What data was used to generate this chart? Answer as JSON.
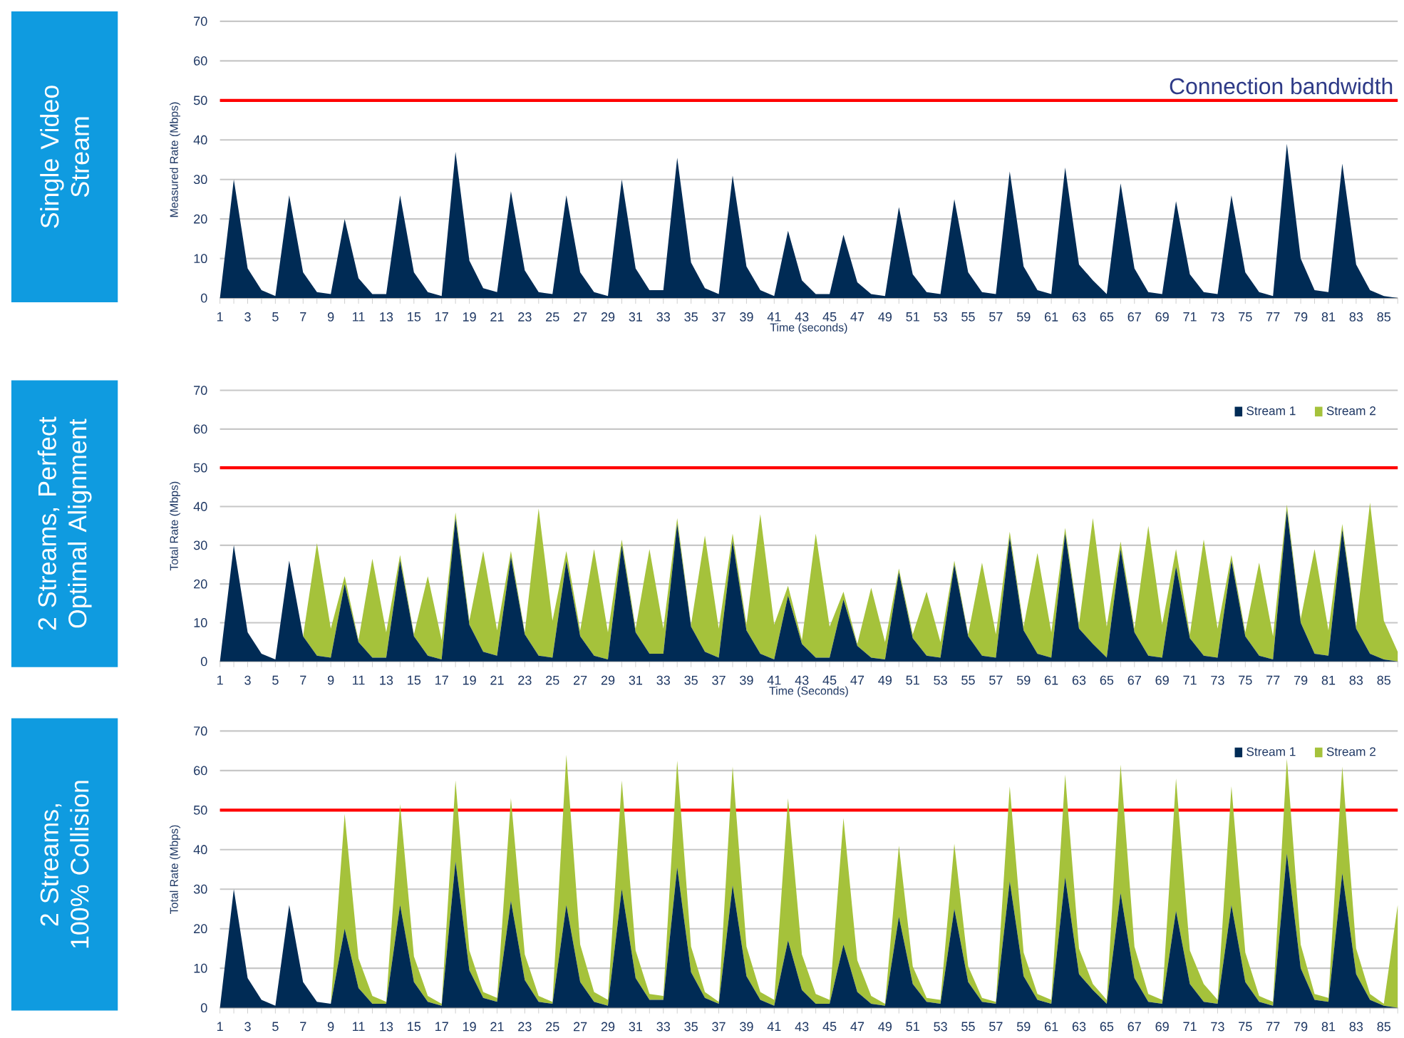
{
  "chart_data": [
    {
      "type": "area",
      "title": "Single Video Stream",
      "xlabel": "Time (seconds)",
      "ylabel": "Measured Rate (Mbps)",
      "categories": [
        "1",
        null,
        "3",
        null,
        "5",
        null,
        "7",
        null,
        "9",
        null,
        "11",
        null,
        "13",
        null,
        "15",
        null,
        "17",
        null,
        "19",
        null,
        "21",
        null,
        "23",
        null,
        "25",
        null,
        "27",
        null,
        "29",
        null,
        "31",
        null,
        "33",
        null,
        "35",
        null,
        "37",
        null,
        "39",
        null,
        "41",
        null,
        "43",
        null,
        "45",
        null,
        "47",
        null,
        "49",
        null,
        "51",
        null,
        "53",
        null,
        "55",
        null,
        "57",
        null,
        "59",
        null,
        "61",
        null,
        "63",
        null,
        "65",
        null,
        "67",
        null,
        "69",
        null,
        "71",
        null,
        "73",
        null,
        "75",
        null,
        "77",
        null,
        "79",
        null,
        "81",
        null,
        "83",
        null,
        "85",
        null
      ],
      "series": [
        {
          "color": "#002b55",
          "values": [
            0,
            30,
            7.5,
            2,
            0.5,
            26,
            6.5,
            1.5,
            1,
            20,
            5,
            1,
            1,
            26,
            6.5,
            1.5,
            0.5,
            37,
            9.5,
            2.5,
            1.5,
            27,
            7,
            1.5,
            1,
            26,
            6.5,
            1.5,
            0.5,
            30,
            7.5,
            2,
            2,
            35.5,
            9,
            2.5,
            1,
            31,
            8,
            2,
            0.5,
            17,
            4.5,
            1,
            1,
            16,
            4,
            1,
            0.5,
            23,
            6,
            1.5,
            1,
            25,
            6.5,
            1.5,
            1,
            32,
            8,
            2,
            1,
            33,
            8.5,
            4.5,
            1,
            29,
            7.5,
            1.5,
            1,
            24.5,
            6,
            1.5,
            1,
            26,
            6.5,
            1.5,
            0.5,
            39,
            10,
            2,
            1.5,
            34,
            8.5,
            2,
            0.5,
            0
          ]
        }
      ],
      "ylim": [
        0,
        70
      ],
      "yticks": [
        0,
        10,
        20,
        30,
        40,
        50,
        60,
        70
      ],
      "grid": "y",
      "ref_lines": [
        {
          "axis": "y",
          "value": 50,
          "label": "Connection bandwidth",
          "color": "#ff0000"
        }
      ]
    },
    {
      "type": "area",
      "title": "2 Streams, Perfect Optimal Alignment",
      "xlabel": "Time (Seconds)",
      "ylabel": "Total Rate (Mbps)",
      "categories": [
        "1",
        null,
        "3",
        null,
        "5",
        null,
        "7",
        null,
        "9",
        null,
        "11",
        null,
        "13",
        null,
        "15",
        null,
        "17",
        null,
        "19",
        null,
        "21",
        null,
        "23",
        null,
        "25",
        null,
        "27",
        null,
        "29",
        null,
        "31",
        null,
        "33",
        null,
        "35",
        null,
        "37",
        null,
        "39",
        null,
        "41",
        null,
        "43",
        null,
        "45",
        null,
        "47",
        null,
        "49",
        null,
        "51",
        null,
        "53",
        null,
        "55",
        null,
        "57",
        null,
        "59",
        null,
        "61",
        null,
        "63",
        null,
        "65",
        null,
        "67",
        null,
        "69",
        null,
        "71",
        null,
        "73",
        null,
        "75",
        null,
        "77",
        null,
        "79",
        null,
        "81",
        null,
        "83",
        null,
        "85",
        null
      ],
      "series": [
        {
          "name": "Stream 1",
          "color": "#002b55",
          "values": [
            0,
            30,
            7.5,
            2,
            0.5,
            26,
            6.5,
            1.5,
            1,
            20,
            5,
            1,
            1,
            26,
            6.5,
            1.5,
            0.5,
            37,
            9.5,
            2.5,
            1.5,
            27,
            7,
            1.5,
            1,
            26,
            6.5,
            1.5,
            0.5,
            30,
            7.5,
            2,
            2,
            35.5,
            9,
            2.5,
            1,
            31,
            8,
            2,
            0.5,
            17,
            4.5,
            1,
            1,
            16,
            4,
            1,
            0.5,
            23,
            6,
            1.5,
            1,
            25,
            6.5,
            1.5,
            1,
            32,
            8,
            2,
            1,
            33,
            8.5,
            4.5,
            1,
            29,
            7.5,
            1.5,
            1,
            24.5,
            6,
            1.5,
            1,
            26,
            6.5,
            1.5,
            0.5,
            39,
            10,
            2,
            1.5,
            34,
            8.5,
            2,
            0.5,
            0
          ]
        },
        {
          "name": "Stream 2",
          "color": "#a5c23b",
          "values": [
            0,
            0,
            0,
            0,
            0,
            0,
            0,
            29,
            7.5,
            2,
            0.5,
            25.5,
            6.5,
            1.5,
            0.5,
            20.5,
            5,
            1.5,
            1,
            26,
            6.5,
            1.5,
            0.5,
            38,
            9.5,
            2.5,
            1.5,
            27.5,
            7,
            1.5,
            1,
            27,
            6.5,
            1.5,
            0.5,
            30,
            7.5,
            2,
            1.5,
            36,
            9,
            2.5,
            1,
            32,
            8,
            2,
            0.5,
            18,
            4.5,
            1,
            1,
            16.5,
            4,
            1,
            0.5,
            24,
            6,
            1.5,
            1,
            26,
            6.5,
            1.5,
            1,
            32.5,
            8,
            2,
            1,
            33.5,
            8.5,
            4.5,
            1,
            30,
            7.5,
            1.5,
            1,
            24,
            6,
            1.5,
            1,
            27,
            6.5,
            1.5,
            0.5,
            39,
            10,
            2.5
          ]
        }
      ],
      "stacked": true,
      "legend": "top right",
      "ylim": [
        0,
        70
      ],
      "yticks": [
        0,
        10,
        20,
        30,
        40,
        50,
        60,
        70
      ],
      "grid": "y",
      "ref_lines": [
        {
          "axis": "y",
          "value": 50,
          "color": "#ff0000"
        }
      ]
    },
    {
      "type": "area",
      "title": "2 Streams, 100% Collision",
      "ylabel": "Total Rate (Mbps)",
      "categories": [
        "1",
        null,
        "3",
        null,
        "5",
        null,
        "7",
        null,
        "9",
        null,
        "11",
        null,
        "13",
        null,
        "15",
        null,
        "17",
        null,
        "19",
        null,
        "21",
        null,
        "23",
        null,
        "25",
        null,
        "27",
        null,
        "29",
        null,
        "31",
        null,
        "33",
        null,
        "35",
        null,
        "37",
        null,
        "39",
        null,
        "41",
        null,
        "43",
        null,
        "45",
        null,
        "47",
        null,
        "49",
        null,
        "51",
        null,
        "53",
        null,
        "55",
        null,
        "57",
        null,
        "59",
        null,
        "61",
        null,
        "63",
        null,
        "65",
        null,
        "67",
        null,
        "69",
        null,
        "71",
        null,
        "73",
        null,
        "75",
        null,
        "77",
        null,
        "79",
        null,
        "81",
        null,
        "83",
        null,
        "85",
        null
      ],
      "series": [
        {
          "name": "Stream 1",
          "color": "#002b55",
          "values": [
            0,
            30,
            7.5,
            2,
            0.5,
            26,
            6.5,
            1.5,
            1,
            20,
            5,
            1,
            1,
            26,
            6.5,
            1.5,
            0.5,
            37,
            9.5,
            2.5,
            1.5,
            27,
            7,
            1.5,
            1,
            26,
            6.5,
            1.5,
            0.5,
            30,
            7.5,
            2,
            2,
            35.5,
            9,
            2.5,
            1,
            31,
            8,
            2,
            0.5,
            17,
            4.5,
            1,
            1,
            16,
            4,
            1,
            0.5,
            23,
            6,
            1.5,
            1,
            25,
            6.5,
            1.5,
            1,
            32,
            8,
            2,
            1,
            33,
            8.5,
            4.5,
            1,
            29,
            7.5,
            1.5,
            1,
            24.5,
            6,
            1.5,
            1,
            26,
            6.5,
            1.5,
            0.5,
            39,
            10,
            2,
            1.5,
            34,
            8.5,
            2,
            0.5,
            0
          ]
        },
        {
          "name": "Stream 2",
          "color": "#a5c23b",
          "values": [
            0,
            0,
            0,
            0,
            0,
            0,
            0,
            0,
            0,
            29,
            7.5,
            2,
            0.5,
            25.5,
            6.5,
            1.5,
            0.5,
            20.5,
            5,
            1.5,
            1,
            26,
            6.5,
            1.5,
            0.5,
            38,
            9.5,
            2.5,
            1.5,
            27.5,
            7,
            1.5,
            1,
            27,
            6.5,
            1.5,
            0.5,
            30,
            7.5,
            2,
            1.5,
            36,
            9,
            2.5,
            1,
            32,
            8,
            2,
            0.5,
            18,
            4.5,
            1,
            1,
            16.5,
            4,
            1,
            0.5,
            24,
            6,
            1.5,
            1,
            26,
            6.5,
            1.5,
            1,
            32.5,
            8,
            2,
            1,
            33.5,
            8.5,
            4.5,
            1,
            30,
            7.5,
            1.5,
            1,
            24,
            6,
            1.5,
            1,
            27,
            6.5,
            1.5,
            0.5,
            26
          ]
        }
      ],
      "stacked": true,
      "legend": "top right",
      "ylim": [
        0,
        70
      ],
      "yticks": [
        0,
        10,
        20,
        30,
        40,
        50,
        60,
        70
      ],
      "grid": "y",
      "ref_lines": [
        {
          "axis": "y",
          "value": 50,
          "color": "#ff0000"
        }
      ]
    }
  ]
}
